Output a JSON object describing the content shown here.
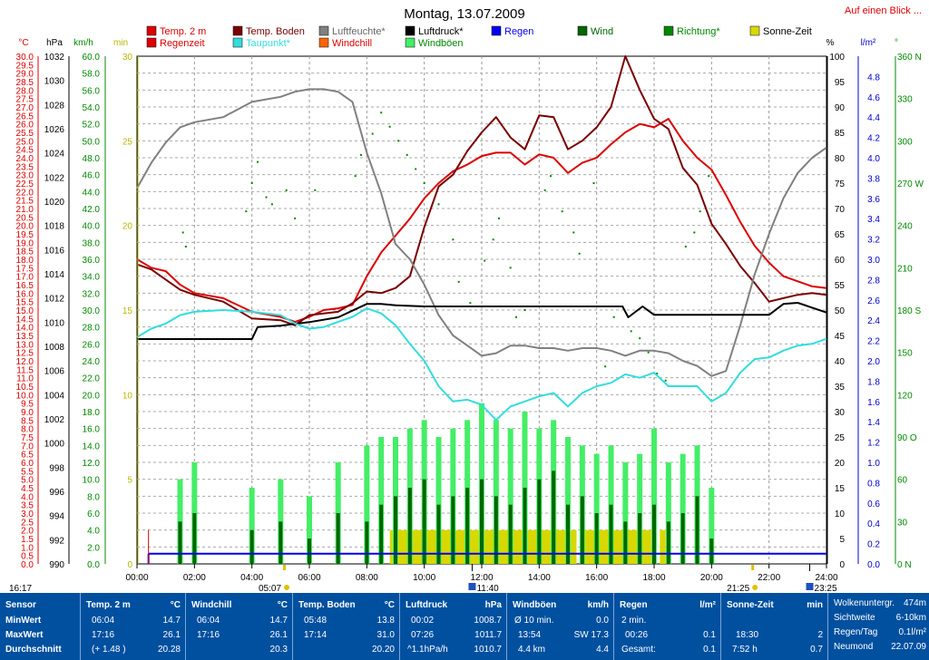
{
  "title": "Montag, 13.07.2009",
  "link": "Auf einen Blick ...",
  "colors": {
    "temp2m": "#dd0000",
    "tempBoden": "#7a0000",
    "luftfeuchte": "#808080",
    "luftdruck": "#000000",
    "regen": "#0000ee",
    "wind": "#006600",
    "windboeen": "#44ee66",
    "richtung": "#008800",
    "sonne": "#d8d800",
    "taupunkt": "#33dddd",
    "regenzeit": "#dd0000",
    "windchill": "#ff6600",
    "panel": "#0050a0"
  },
  "legend": [
    {
      "key": "temp2m",
      "label": "Temp. 2 m"
    },
    {
      "key": "tempBoden",
      "label": "Temp. Boden"
    },
    {
      "key": "luftfeuchte",
      "label": "Luftfeuchte*"
    },
    {
      "key": "luftdruck",
      "label": "Luftdruck*"
    },
    {
      "key": "regen",
      "label": "Regen"
    },
    {
      "key": "wind",
      "label": "Wind"
    },
    {
      "key": "richtung",
      "label": "Richtung*"
    },
    {
      "key": "sonne",
      "label": "Sonne-Zeit"
    },
    {
      "key": "regenzeit",
      "label": "Regenzeit"
    },
    {
      "key": "taupunkt",
      "label": "Taupunkt*"
    },
    {
      "key": "windchill",
      "label": "Windchill"
    },
    {
      "key": "windboeen",
      "label": "Windböen"
    }
  ],
  "axis_units": {
    "temp": "°C",
    "pressure": "hPa",
    "wind": "km/h",
    "min": "min",
    "humidity": "%",
    "rain": "l/m²",
    "dir": "°"
  },
  "sun_markers": {
    "start": "16:17",
    "sunrise": "05:07",
    "sunset": "21:25",
    "moonrise": "11:40",
    "moonset": "23:25"
  },
  "chart_data": {
    "type": "line",
    "x_unit": "hours",
    "xlim": [
      0,
      24
    ],
    "x_ticks": [
      "00:00",
      "02:00",
      "04:00",
      "06:00",
      "08:00",
      "10:00",
      "12:00",
      "14:00",
      "16:00",
      "18:00",
      "20:00",
      "22:00",
      "24:00"
    ],
    "axes": {
      "temp": {
        "lim": [
          0,
          30
        ],
        "ticks": [
          "0.0",
          "0.5",
          "1.0",
          "1.5",
          "2.0",
          "2.5",
          "3.0",
          "3.5",
          "4.0",
          "4.5",
          "5.0",
          "5.5",
          "6.0",
          "6.5",
          "7.0",
          "7.5",
          "8.0",
          "8.5",
          "9.0",
          "9.5",
          "10.0",
          "10.5",
          "11.0",
          "11.5",
          "12.0",
          "12.5",
          "13.0",
          "13.5",
          "14.0",
          "14.5",
          "15.0",
          "15.5",
          "16.0",
          "16.5",
          "17.0",
          "17.5",
          "18.0",
          "18.5",
          "19.0",
          "19.5",
          "20.0",
          "20.5",
          "21.0",
          "21.5",
          "22.0",
          "22.5",
          "23.0",
          "23.5",
          "24.0",
          "24.5",
          "25.0",
          "25.5",
          "26.0",
          "26.5",
          "27.0",
          "27.5",
          "28.0",
          "28.5",
          "29.0",
          "29.5",
          "30.0"
        ]
      },
      "pressure": {
        "lim": [
          990,
          1032
        ],
        "ticks": [
          "990",
          "992",
          "994",
          "996",
          "998",
          "1000",
          "1002",
          "1004",
          "1006",
          "1008",
          "1010",
          "1012",
          "1014",
          "1016",
          "1018",
          "1020",
          "1022",
          "1024",
          "1026",
          "1028",
          "1030",
          "1032"
        ]
      },
      "wind": {
        "lim": [
          0,
          60
        ],
        "ticks": [
          "0.0",
          "2.0",
          "4.0",
          "6.0",
          "8.0",
          "10.0",
          "12.0",
          "14.0",
          "16.0",
          "18.0",
          "20.0",
          "22.0",
          "24.0",
          "26.0",
          "28.0",
          "30.0",
          "32.0",
          "34.0",
          "36.0",
          "38.0",
          "40.0",
          "42.0",
          "44.0",
          "46.0",
          "48.0",
          "50.0",
          "52.0",
          "54.0",
          "56.0",
          "58.0",
          "60.0"
        ]
      },
      "min": {
        "lim": [
          0,
          30
        ],
        "ticks": [
          "0",
          "5",
          "10",
          "15",
          "20",
          "25",
          "30"
        ]
      },
      "humidity": {
        "lim": [
          0,
          100
        ],
        "ticks": [
          "0",
          "5",
          "10",
          "15",
          "20",
          "25",
          "30",
          "35",
          "40",
          "45",
          "50",
          "55",
          "60",
          "65",
          "70",
          "75",
          "80",
          "85",
          "90",
          "95",
          "100"
        ]
      },
      "rain": {
        "lim": [
          0,
          5
        ],
        "ticks": [
          "0.0",
          "0.2",
          "0.4",
          "0.6",
          "0.8",
          "1.0",
          "1.2",
          "1.4",
          "1.6",
          "1.8",
          "2.0",
          "2.2",
          "2.4",
          "2.6",
          "2.8",
          "3.0",
          "3.2",
          "3.4",
          "3.6",
          "3.8",
          "4.0",
          "4.2",
          "4.4",
          "4.6",
          "4.8"
        ]
      },
      "dir": {
        "lim": [
          0,
          360
        ],
        "ticks": [
          "0 N",
          "30",
          "60",
          "90 O",
          "120",
          "150",
          "180 S",
          "210",
          "240",
          "270 W",
          "300",
          "330",
          "360 N"
        ]
      }
    },
    "series": [
      {
        "name": "Temp. 2 m",
        "color_key": "temp2m",
        "axis": "temp",
        "x": [
          0,
          0.5,
          1,
          1.5,
          2,
          3,
          4,
          5,
          5.5,
          6,
          6.5,
          7,
          7.5,
          8,
          8.5,
          9,
          9.5,
          10,
          10.5,
          11,
          11.5,
          12,
          12.5,
          13,
          13.5,
          14,
          14.5,
          15,
          15.5,
          16,
          16.5,
          17,
          17.5,
          18,
          18.5,
          19,
          19.5,
          20,
          20.5,
          21,
          21.5,
          22,
          22.5,
          23,
          23.5,
          24
        ],
        "y": [
          18,
          17.5,
          17.3,
          16.5,
          16,
          15.7,
          14.9,
          14.6,
          14.3,
          14.6,
          15,
          15.1,
          15.3,
          17,
          18.4,
          19.4,
          20.4,
          21.6,
          22.5,
          23.2,
          23.6,
          24.1,
          24.3,
          24.3,
          23.6,
          24.2,
          24,
          23.1,
          23.7,
          24,
          24.8,
          25.5,
          26,
          25.8,
          26.3,
          25,
          24,
          23.3,
          21.8,
          20.2,
          18.8,
          17.8,
          17,
          16.7,
          16.4,
          16.3
        ]
      },
      {
        "name": "Temp. Boden",
        "color_key": "tempBoden",
        "axis": "temp",
        "x": [
          0,
          0.5,
          1,
          1.5,
          2,
          3,
          4,
          5,
          5.5,
          6,
          6.5,
          7,
          7.5,
          8,
          8.5,
          9,
          9.5,
          10,
          10.5,
          11,
          11.5,
          12,
          12.5,
          13,
          13.5,
          14,
          14.5,
          15,
          15.5,
          16,
          16.5,
          17,
          17.5,
          18,
          18.5,
          19,
          19.5,
          20,
          20.5,
          21,
          21.5,
          22,
          22.5,
          23,
          23.5,
          24
        ],
        "y": [
          17.7,
          17.4,
          16.8,
          16.2,
          15.9,
          15.5,
          14.5,
          14.4,
          14.1,
          14.7,
          14.8,
          14.9,
          15.4,
          16.1,
          16,
          16.3,
          17,
          19.9,
          22.3,
          23,
          24.4,
          25.5,
          26.4,
          25.2,
          24.5,
          26.5,
          26.4,
          24.5,
          25,
          25.8,
          27,
          30,
          28,
          26.3,
          25.7,
          23.4,
          22.4,
          20.1,
          18.9,
          17.6,
          16.6,
          15.5,
          15.7,
          15.9,
          16,
          15.9
        ]
      },
      {
        "name": "Luftfeuchte*",
        "color_key": "luftfeuchte",
        "axis": "humidity",
        "x": [
          0,
          0.5,
          1,
          1.5,
          2,
          3,
          4,
          5,
          5.5,
          6,
          6.5,
          7,
          7.5,
          8,
          8.5,
          9,
          9.5,
          10,
          10.5,
          11,
          11.5,
          12,
          12.5,
          13,
          13.5,
          14,
          14.5,
          15,
          15.5,
          16,
          16.5,
          17,
          17.5,
          18,
          18.5,
          19,
          19.5,
          20,
          20.5,
          21,
          21.5,
          22,
          22.5,
          23,
          23.5,
          24
        ],
        "y": [
          74,
          79,
          83,
          86,
          87,
          88,
          91,
          92,
          93,
          93.5,
          93.5,
          93,
          91,
          81,
          73,
          63,
          60,
          55,
          49,
          45,
          43,
          41,
          41.5,
          43,
          43,
          42.5,
          42.5,
          42,
          42.5,
          42.5,
          42,
          41,
          42,
          42,
          41.5,
          40,
          39,
          37,
          38,
          47,
          57,
          65,
          72,
          77,
          80,
          82
        ]
      },
      {
        "name": "Luftdruck*",
        "color_key": "luftdruck",
        "axis": "pressure",
        "x": [
          0,
          1,
          2,
          3,
          4,
          4.2,
          5,
          6,
          7,
          8,
          8.5,
          9,
          10,
          12,
          14,
          16,
          16.9,
          17.1,
          17.6,
          18,
          19,
          20,
          21,
          22,
          22.5,
          23,
          24
        ],
        "y": [
          1008.6,
          1008.6,
          1008.6,
          1008.6,
          1008.6,
          1009.6,
          1009.7,
          1010,
          1010.4,
          1011.5,
          1011.5,
          1011.4,
          1011.3,
          1011.3,
          1011.3,
          1011.3,
          1011.3,
          1010.4,
          1011.3,
          1010.6,
          1010.6,
          1010.6,
          1010.6,
          1010.6,
          1011.5,
          1011.6,
          1010.8
        ]
      },
      {
        "name": "Taupunkt*",
        "color_key": "taupunkt",
        "axis": "temp",
        "x": [
          0,
          0.5,
          1,
          1.5,
          2,
          3,
          4,
          5,
          5.5,
          6,
          6.5,
          7,
          7.5,
          8,
          8.5,
          9,
          9.5,
          10,
          10.5,
          11,
          11.5,
          12,
          12.5,
          13,
          13.5,
          14,
          14.5,
          15,
          15.5,
          16,
          16.5,
          17,
          17.5,
          18,
          18.5,
          19,
          19.5,
          20,
          20.5,
          21,
          21.5,
          22,
          22.5,
          23,
          23.5,
          24
        ],
        "y": [
          13.4,
          13.9,
          14.2,
          14.7,
          14.9,
          15,
          14.9,
          14.7,
          14.2,
          13.9,
          14,
          14.3,
          14.6,
          15.1,
          14.8,
          14.1,
          13,
          12,
          10.5,
          9.6,
          9.7,
          9.4,
          8.5,
          9.3,
          9.6,
          9.9,
          10.1,
          9.3,
          10.1,
          10.5,
          10.7,
          11.2,
          11,
          11.3,
          10.5,
          10.5,
          10.5,
          9.6,
          10.1,
          11.3,
          12.1,
          12.2,
          12.6,
          12.9,
          13,
          13.3
        ]
      }
    ],
    "wind_bars": {
      "name": "Wind",
      "color_key": "wind",
      "axis": "wind",
      "x": [
        1.5,
        2,
        4,
        5,
        6,
        7,
        8,
        8.5,
        9,
        9.5,
        10,
        10.5,
        11,
        11.5,
        12,
        12.5,
        13,
        13.5,
        14,
        14.5,
        15,
        15.5,
        16,
        16.5,
        17,
        17.5,
        18,
        18.5,
        19,
        19.5,
        20
      ],
      "y": [
        5,
        6,
        4,
        5,
        3,
        6,
        5,
        7,
        8,
        9,
        10,
        7,
        8,
        9,
        10,
        8,
        7,
        9,
        10,
        11,
        7,
        8,
        6,
        7,
        5,
        6,
        7,
        5,
        6,
        8,
        3
      ]
    },
    "gust_bars": {
      "name": "Windböen",
      "color_key": "windboeen",
      "axis": "wind",
      "x": [
        1.5,
        2,
        4,
        5,
        6,
        7,
        8,
        8.5,
        9,
        9.5,
        10,
        10.5,
        11,
        11.5,
        12,
        12.5,
        13,
        13.5,
        14,
        14.5,
        15,
        15.5,
        16,
        16.5,
        17,
        17.5,
        18,
        18.5,
        19,
        19.5,
        20
      ],
      "y": [
        10,
        12,
        9,
        10,
        8,
        12,
        14,
        15,
        15,
        16,
        17,
        15,
        16,
        17,
        19,
        17,
        16,
        18,
        16,
        17,
        15,
        14,
        13,
        14,
        12,
        13,
        16,
        12,
        13,
        14,
        9
      ]
    },
    "direction_points": {
      "name": "Richtung*",
      "color_key": "richtung",
      "axis": "dir",
      "x": [
        1.6,
        1.7,
        3.8,
        4,
        4.2,
        4.5,
        4.7,
        5.2,
        5.5,
        6.2,
        7.6,
        7.8,
        8.2,
        8.5,
        8.8,
        9.1,
        9.4,
        9.7,
        10,
        10.5,
        11,
        11.2,
        11.6,
        12.1,
        12.4,
        12.6,
        13,
        13.2,
        13.5,
        14.2,
        14.4,
        14.8,
        15.2,
        15.4,
        15.9,
        16.3,
        16.6,
        17.2,
        17.5,
        17.8,
        18.1,
        18.4,
        19.1,
        19.4,
        19.6,
        19.9
      ],
      "y": [
        235,
        225,
        250,
        270,
        285,
        260,
        255,
        265,
        245,
        265,
        275,
        290,
        305,
        320,
        310,
        300,
        290,
        280,
        270,
        255,
        230,
        200,
        185,
        215,
        230,
        245,
        210,
        175,
        180,
        265,
        275,
        250,
        235,
        220,
        270,
        140,
        175,
        165,
        160,
        150,
        135,
        130,
        225,
        235,
        250,
        275
      ]
    },
    "sun_blocks": {
      "name": "Sonne-Zeit",
      "color_key": "sonne",
      "axis": "min",
      "x0": [
        8.8,
        13.6,
        15.5,
        18.2
      ],
      "x1": [
        13.4,
        15.3,
        17.9,
        18.4
      ],
      "y": [
        2,
        2,
        2,
        2
      ]
    },
    "rain_line": {
      "name": "Regen",
      "color_key": "regen",
      "axis": "rain",
      "x": [
        0.4,
        24
      ],
      "y": [
        0.1,
        0.1
      ]
    },
    "regenzeit_marker": {
      "name": "Regenzeit",
      "color_key": "regenzeit",
      "axis": "min",
      "x": [
        0.4
      ],
      "y": [
        2
      ]
    }
  },
  "stats": {
    "sensor": {
      "title": "Sensor",
      "rows": [
        "MinWert",
        "MaxWert",
        "Durchschnitt"
      ]
    },
    "temp2m": {
      "title": "Temp. 2 m",
      "unit": "°C",
      "times": [
        "06:04",
        "17:16",
        "(+ 1.48 )"
      ],
      "values": [
        "14.7",
        "26.1",
        "20.28"
      ]
    },
    "windchill": {
      "title": "Windchill",
      "unit": "°C",
      "times": [
        "06:04",
        "17:16",
        ""
      ],
      "values": [
        "14.7",
        "26.1",
        "20.3"
      ]
    },
    "boden": {
      "title": "Temp. Boden",
      "unit": "°C",
      "times": [
        "05:48",
        "17:14",
        ""
      ],
      "values": [
        "13.8",
        "31.0",
        "20.20"
      ]
    },
    "luftdruck": {
      "title": "Luftdruck",
      "unit": "hPa",
      "times": [
        "00:02",
        "07:26",
        "^1.1hPa/h"
      ],
      "values": [
        "1008.7",
        "1011.7",
        "1010.7"
      ]
    },
    "windboeen": {
      "title": "Windböen",
      "unit": "km/h",
      "times": [
        "Ø 10 min.",
        "13:54",
        "4.4 km"
      ],
      "mids": [
        "",
        "SW 17.3",
        ""
      ],
      "values": [
        "0.0",
        "",
        "4.4"
      ]
    },
    "regen": {
      "title": "Regen",
      "unit": "l/m²",
      "times": [
        "2 min.",
        "00:26",
        "Gesamt:"
      ],
      "values": [
        "",
        "0.1",
        "0.1"
      ]
    },
    "sonne": {
      "title": "Sonne-Zeit",
      "unit": "min",
      "times": [
        "",
        "18:30",
        "7:52 h"
      ],
      "values": [
        "",
        "2",
        "0.7"
      ]
    },
    "misc": {
      "labels": [
        "Wolkenuntergr.",
        "Sichtweite",
        "Regen/Tag",
        "Neumond"
      ],
      "values": [
        "474m",
        "6-10km",
        "0.1l/m²",
        "22.07.09"
      ]
    }
  }
}
